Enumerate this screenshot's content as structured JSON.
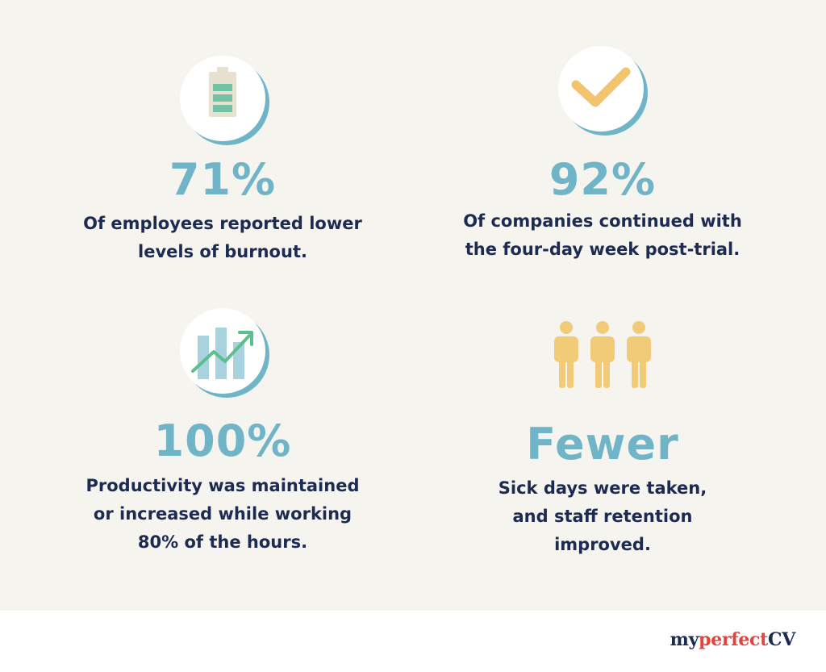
{
  "stats": [
    {
      "value": "71%",
      "description_lines": [
        "Of employees reported lower",
        "levels of burnout."
      ],
      "icon": "battery-icon"
    },
    {
      "value": "92%",
      "description_lines": [
        "Of companies continued with",
        "the four-day week post-trial."
      ],
      "icon": "checkmark-icon"
    },
    {
      "value": "100%",
      "description_lines": [
        "Productivity was maintained",
        "or increased while working",
        "80% of the hours."
      ],
      "icon": "growth-chart-icon"
    },
    {
      "value": "Fewer",
      "description_lines": [
        "Sick days were taken,",
        "and staff retention",
        "improved."
      ],
      "icon": "people-icon"
    }
  ],
  "logo": {
    "part1": "my",
    "part2": "perfect",
    "part3": "CV"
  },
  "colors": {
    "accent_teal": "#6fb5c7",
    "navy": "#1d2b52",
    "battery_green": "#74c2a6",
    "battery_shell": "#e9e1cf",
    "check_yellow": "#f2c46e",
    "people_yellow": "#f2cb79",
    "bars_light_teal": "#a8d2dd",
    "arrow_green": "#5bbf8f",
    "logo_red": "#e0443c",
    "panel_bg": "#f6f4ef"
  }
}
